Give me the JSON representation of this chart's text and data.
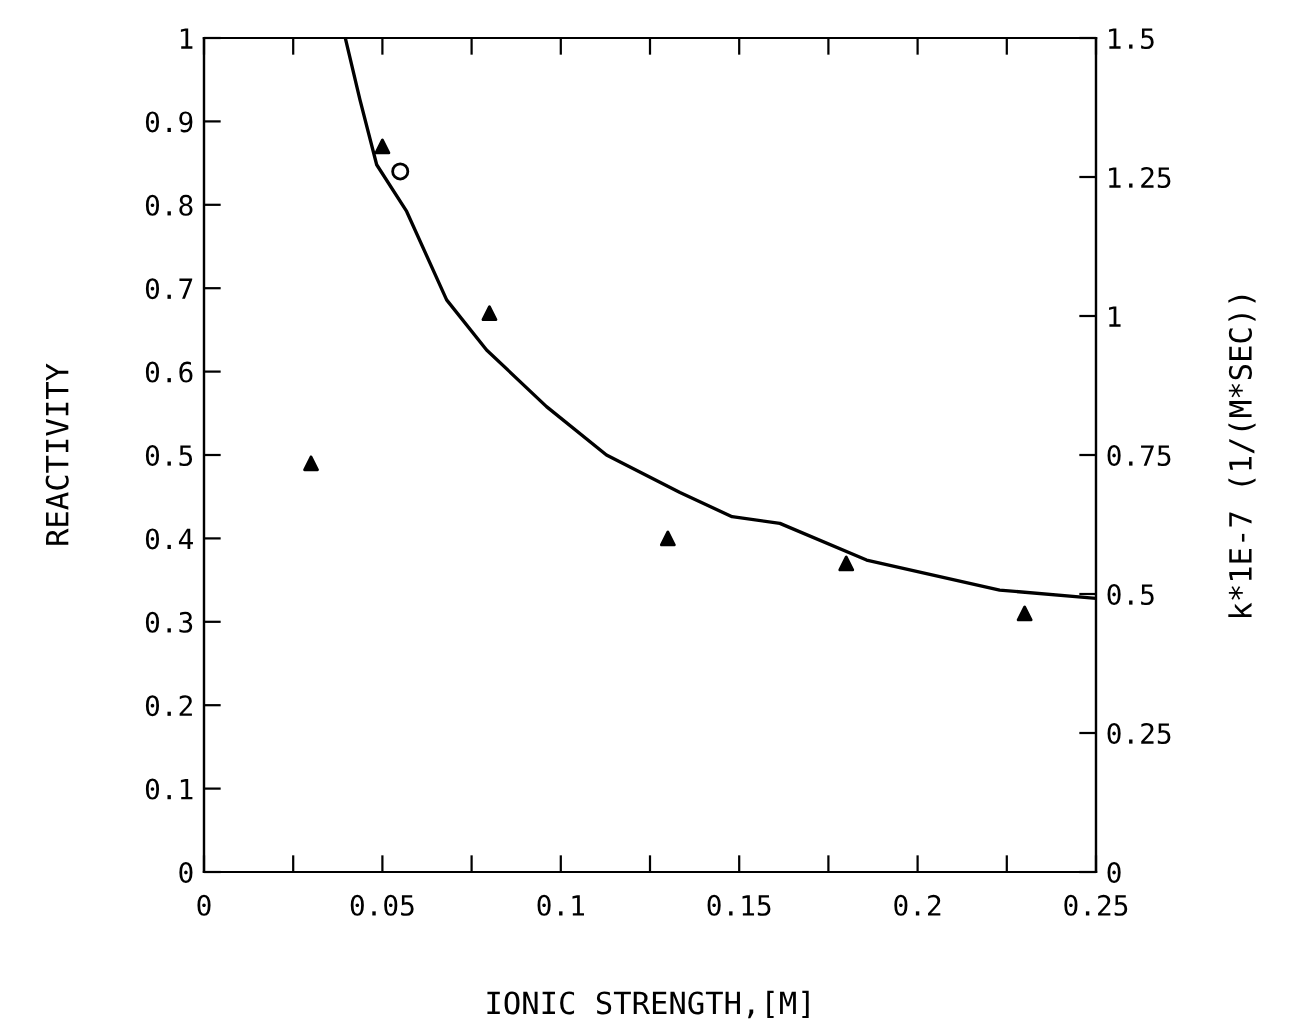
{
  "chart_data": {
    "type": "scatter",
    "xlabel": "IONIC STRENGTH,[M]",
    "ylabel": "REACTIVITY",
    "y2label": "k*1E-7 (1/(M*SEC))",
    "series": [
      {
        "marker": "triangle",
        "color": "#000000",
        "x": [
          0.03,
          0.05,
          0.08,
          0.13,
          0.18,
          0.23
        ],
        "values": [
          0.49,
          0.87,
          0.67,
          0.4,
          0.37,
          0.31
        ]
      },
      {
        "marker": "circle",
        "color": "#000000",
        "x": [
          0.055
        ],
        "values": [
          0.84
        ]
      },
      {
        "type": "line",
        "marker": "none",
        "color": "#000000",
        "x": [
          0.0396,
          0.0437,
          0.0484,
          0.0568,
          0.068,
          0.0792,
          0.096,
          0.1128,
          0.1334,
          0.148,
          0.1614,
          0.1857,
          0.223,
          0.25
        ],
        "values": [
          1.0,
          0.926,
          0.848,
          0.792,
          0.686,
          0.626,
          0.558,
          0.5,
          0.455,
          0.426,
          0.418,
          0.374,
          0.338,
          0.328
        ]
      }
    ],
    "xlim": [
      0,
      0.25
    ],
    "xticks": [
      0,
      {
        "value": 0.025,
        "label": null
      },
      0.05,
      {
        "value": 0.075,
        "label": null
      },
      0.1,
      {
        "value": 0.125,
        "label": null
      },
      0.15,
      {
        "value": 0.175,
        "label": null
      },
      0.2,
      {
        "value": 0.225,
        "label": null
      },
      0.25
    ],
    "ylim": [
      0,
      1
    ],
    "yticks": [
      0,
      0.1,
      0.2,
      0.3,
      0.4,
      0.5,
      0.6,
      0.7,
      0.8,
      0.9,
      1
    ],
    "y2lim": [
      0,
      1.5
    ],
    "y2ticks": [
      0,
      0.25,
      0.5,
      0.75,
      1,
      1.25,
      1.5
    ],
    "grid": false,
    "legend": false
  }
}
